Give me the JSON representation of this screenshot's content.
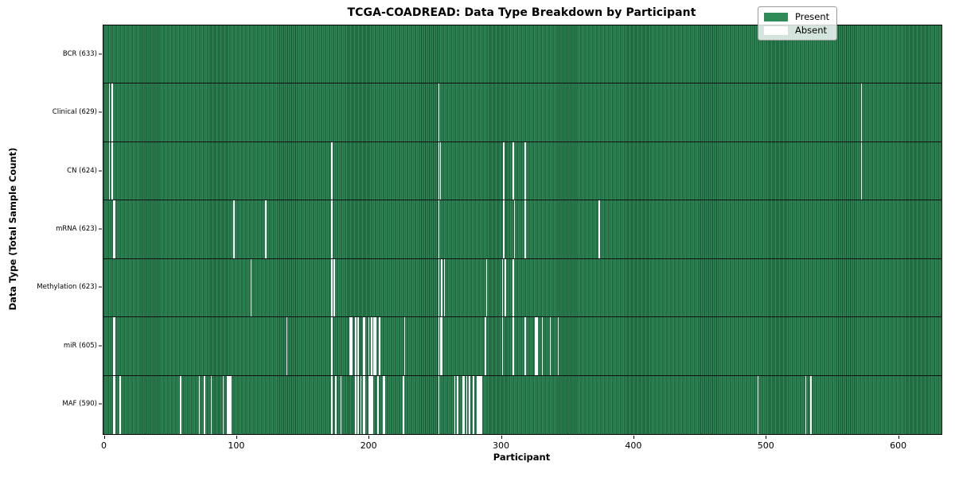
{
  "chart_data": {
    "type": "heatmap",
    "title": "TCGA-COADREAD: Data Type Breakdown by Participant",
    "xlabel": "Participant",
    "ylabel": "Data Type (Total Sample Count)",
    "n_participants": 633,
    "x_ticks": [
      0,
      100,
      200,
      300,
      400,
      500,
      600
    ],
    "x_range": [
      0,
      633
    ],
    "grid": false,
    "legend_position": "upper right",
    "legend": [
      {
        "label": "Present",
        "color": "#2e8b57"
      },
      {
        "label": "Absent",
        "color": "#ffffff"
      }
    ],
    "colors": {
      "present": "#2e8b57",
      "absent": "#ffffff",
      "column_edge": "#1b4d32",
      "row_divider": "#111111",
      "spine": "#000000"
    },
    "rows": [
      {
        "label": "BCR",
        "count": 633,
        "display": "BCR (633)",
        "absent": []
      },
      {
        "label": "Clinical",
        "count": 629,
        "display": "Clinical (629)",
        "absent": [
          4,
          6,
          253,
          572
        ]
      },
      {
        "label": "CN",
        "count": 624,
        "display": "CN (624)",
        "absent": [
          4,
          6,
          172,
          253,
          254,
          302,
          309,
          318,
          572
        ]
      },
      {
        "label": "mRNA",
        "count": 623,
        "display": "mRNA (623)",
        "absent": [
          7,
          8,
          98,
          122,
          172,
          253,
          302,
          310,
          318,
          374
        ]
      },
      {
        "label": "Methylation",
        "count": 623,
        "display": "Methylation (623)",
        "absent": [
          111,
          172,
          174,
          253,
          255,
          257,
          289,
          301,
          303,
          309
        ]
      },
      {
        "label": "miR",
        "count": 605,
        "display": "miR (605)",
        "absent": [
          7,
          8,
          138,
          172,
          186,
          187,
          190,
          192,
          196,
          197,
          200,
          202,
          204,
          205,
          208,
          227,
          253,
          254,
          255,
          288,
          301,
          309,
          318,
          326,
          327,
          331,
          337,
          343
        ]
      },
      {
        "label": "MAF",
        "count": 590,
        "display": "MAF (590)",
        "absent": [
          7,
          8,
          12,
          58,
          72,
          76,
          81,
          90,
          93,
          94,
          95,
          96,
          172,
          175,
          179,
          190,
          192,
          194,
          196,
          197,
          200,
          201,
          202,
          203,
          207,
          211,
          212,
          226,
          253,
          265,
          267,
          271,
          272,
          274,
          276,
          279,
          282,
          283,
          284,
          285,
          494,
          530,
          534
        ]
      }
    ]
  }
}
